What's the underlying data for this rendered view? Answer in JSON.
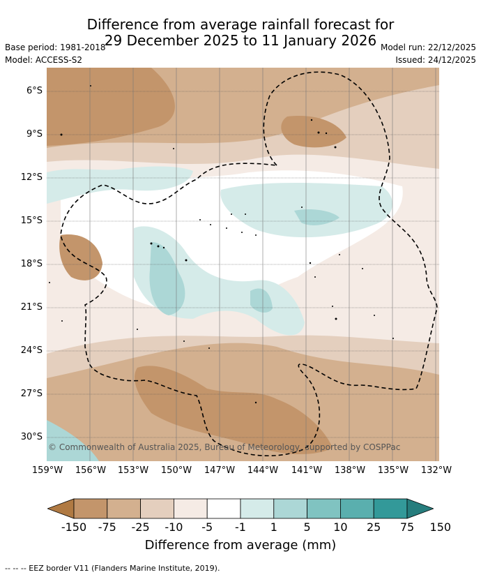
{
  "title_line1": "Difference from average rainfall forecast for",
  "title_line2": "29 December 2025 to 11 January 2026",
  "base_period": "Base period: 1981-2018",
  "model": "Model: ACCESS-S2",
  "model_run": "Model run: 22/12/2025",
  "issued": "Issued: 24/12/2025",
  "lat_labels": [
    "6°S",
    "9°S",
    "12°S",
    "15°S",
    "18°S",
    "21°S",
    "24°S",
    "27°S",
    "30°S"
  ],
  "lon_labels": [
    "159°W",
    "156°W",
    "153°W",
    "150°W",
    "147°W",
    "144°W",
    "141°W",
    "138°W",
    "135°W",
    "132°W"
  ],
  "copyright": "© Commonwealth of Australia 2025, Bureau of Meteorology, supported by COSPPac",
  "colorbar": {
    "ticks": [
      "-150",
      "-75",
      "-25",
      "-10",
      "-5",
      "-1",
      "1",
      "5",
      "10",
      "25",
      "75",
      "150"
    ],
    "colors": [
      "#b07a43",
      "#c3956b",
      "#d3b08f",
      "#e4cfbe",
      "#f5ebe5",
      "#ffffff",
      "#d5ebe9",
      "#acd7d6",
      "#80c3c1",
      "#5aafae",
      "#339999",
      "#267d7d"
    ],
    "title": "Difference from average (mm)"
  },
  "footer": "--  --  -- EEZ border V11 (Flanders Marine Institute, 2019)."
}
